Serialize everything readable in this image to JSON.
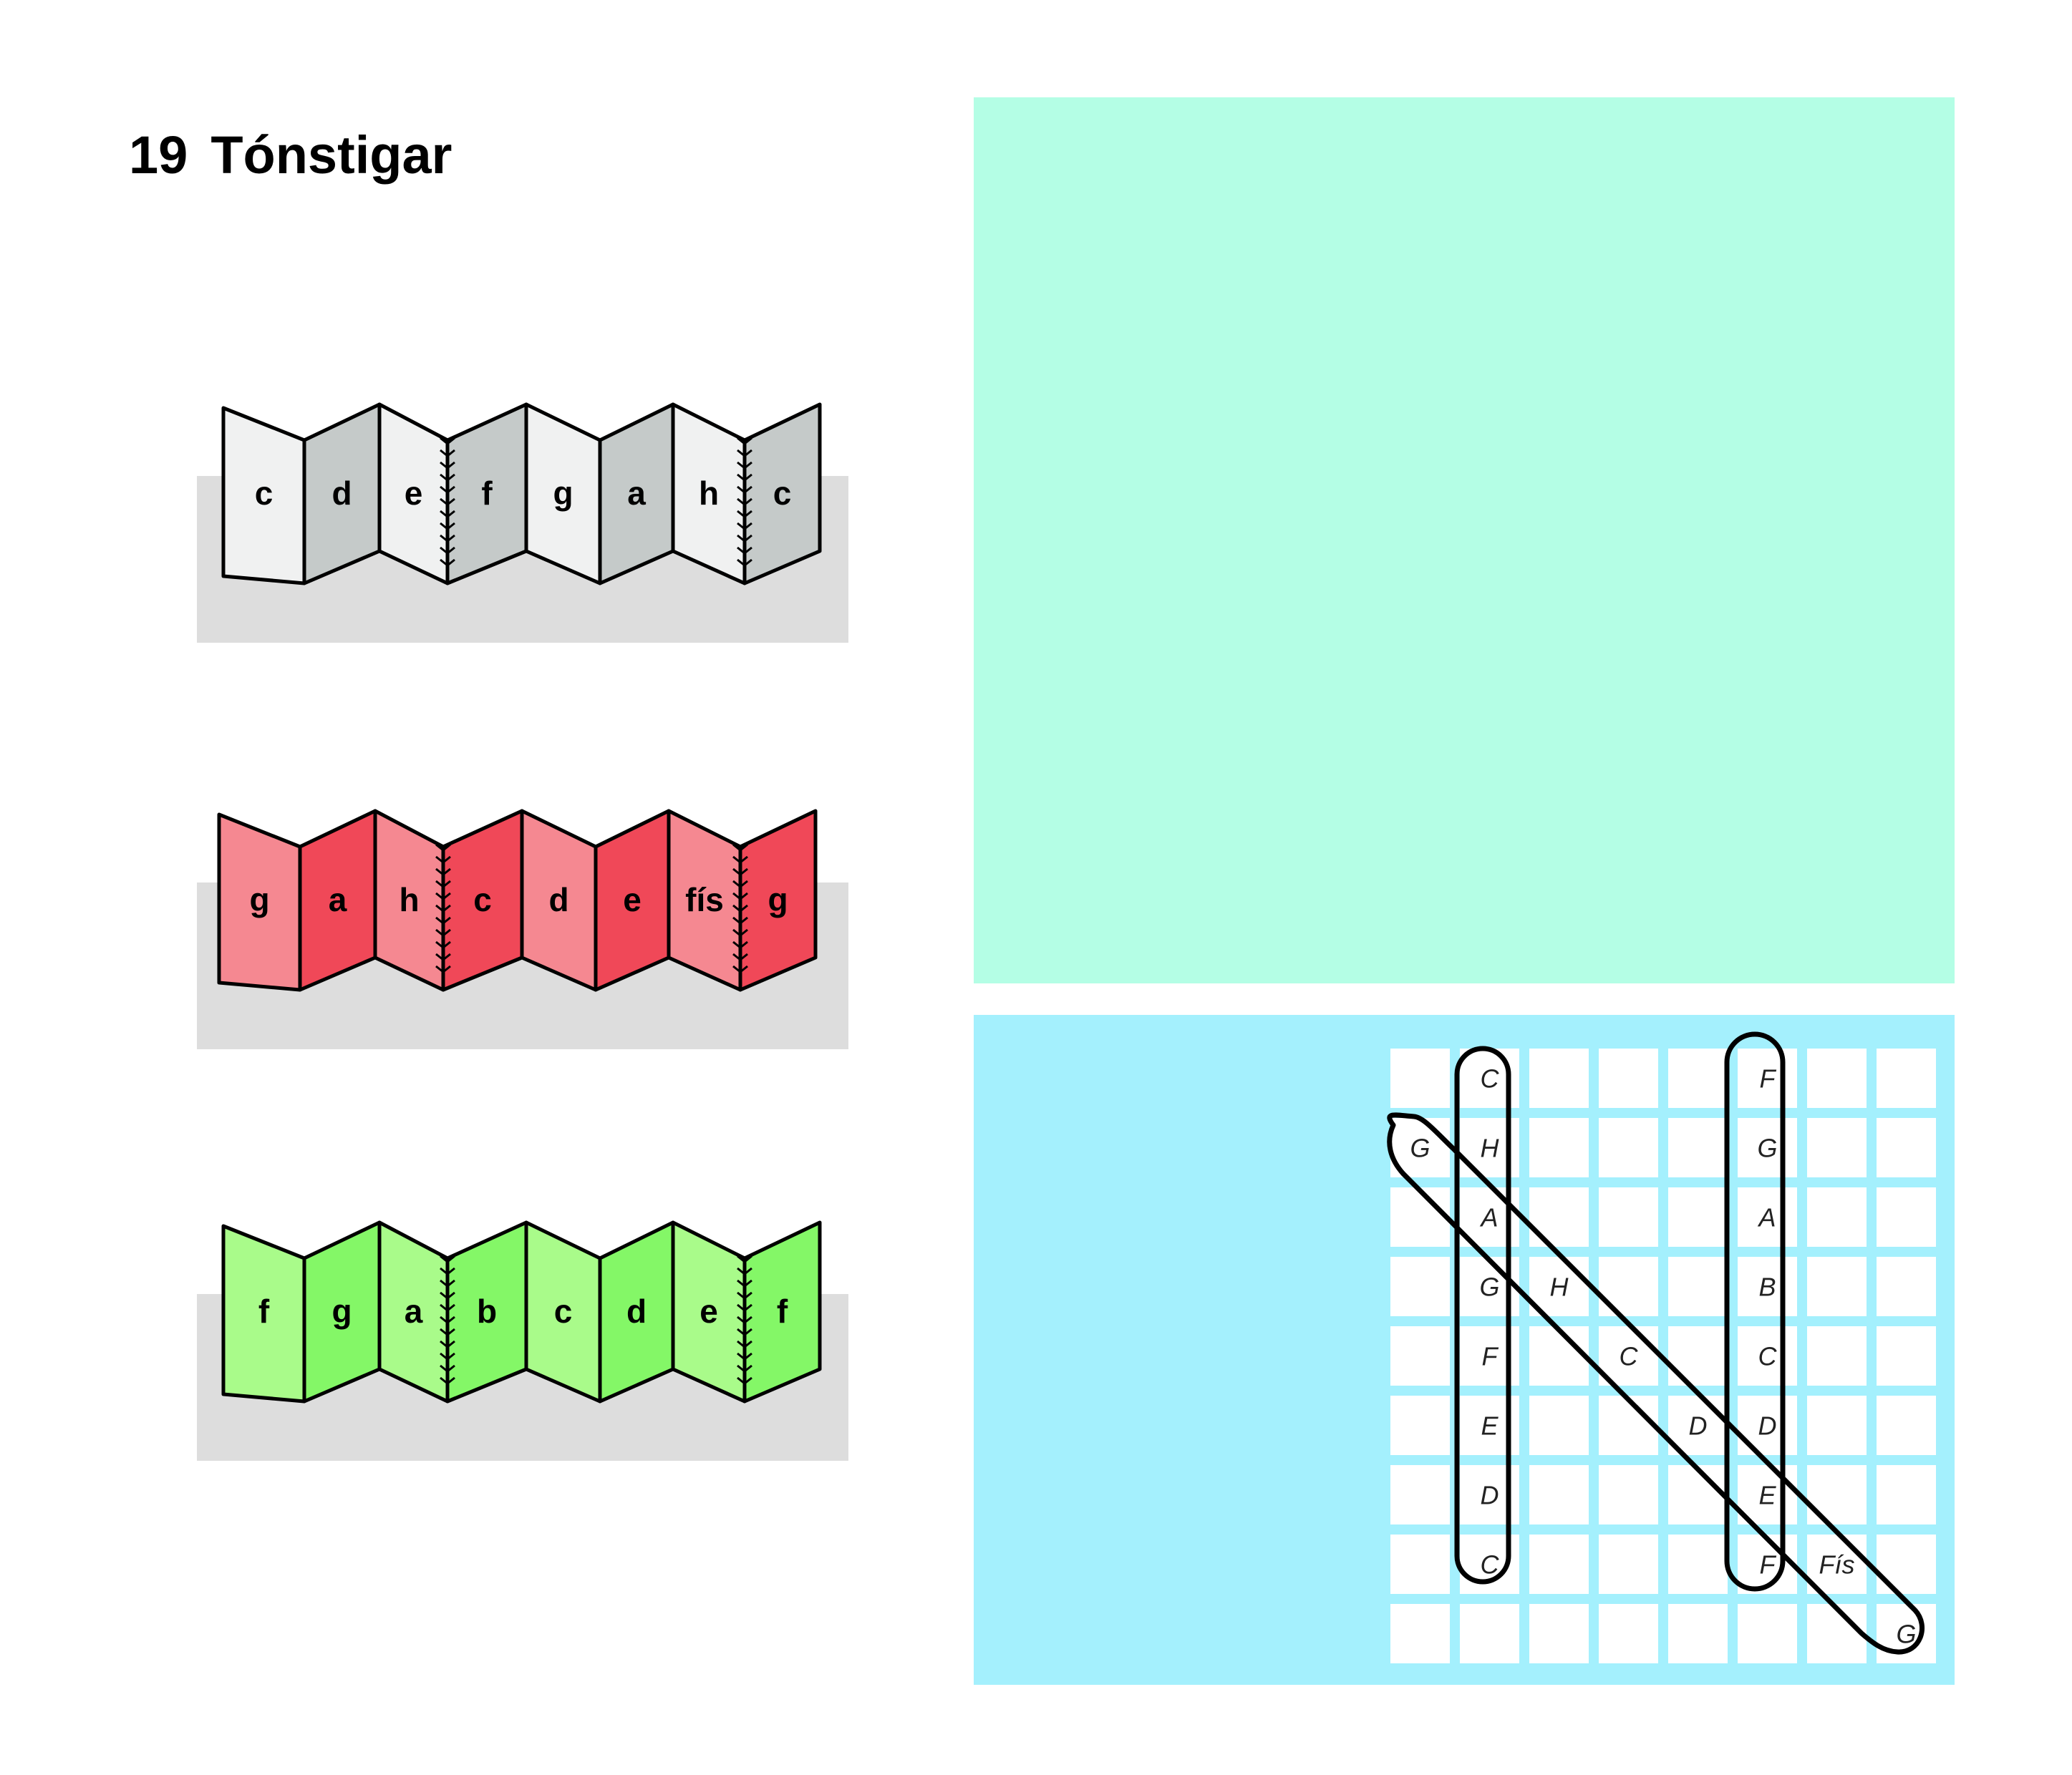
{
  "title": {
    "number": "19",
    "text": "Tónstigar"
  },
  "colors": {
    "grey_light": "#f0f1f1",
    "grey_dark": "#c5cac9",
    "red_light": "#f58891",
    "red_dark": "#f04858",
    "green_light": "#a9fb8a",
    "green_dark": "#84f767",
    "shelf": "#dddddd",
    "panel_top": "#b4fee5",
    "panel_bottom": "#a4f0fd"
  },
  "scales": [
    {
      "name": "grey",
      "notes": [
        "c",
        "d",
        "e",
        "f",
        "g",
        "a",
        "h",
        "c"
      ]
    },
    {
      "name": "red",
      "notes": [
        "g",
        "a",
        "h",
        "c",
        "d",
        "e",
        "fís",
        "g"
      ]
    },
    {
      "name": "green",
      "notes": [
        "f",
        "g",
        "a",
        "b",
        "c",
        "d",
        "e",
        "f"
      ]
    }
  ],
  "grid": {
    "columns": 8,
    "rows": 9,
    "cells": [
      {
        "row": 0,
        "col": 1,
        "text": "C"
      },
      {
        "row": 1,
        "col": 1,
        "text": "H"
      },
      {
        "row": 2,
        "col": 1,
        "text": "A"
      },
      {
        "row": 3,
        "col": 1,
        "text": "G"
      },
      {
        "row": 4,
        "col": 1,
        "text": "F"
      },
      {
        "row": 5,
        "col": 1,
        "text": "E"
      },
      {
        "row": 6,
        "col": 1,
        "text": "D"
      },
      {
        "row": 7,
        "col": 1,
        "text": "C"
      },
      {
        "row": 0,
        "col": 5,
        "text": "F"
      },
      {
        "row": 1,
        "col": 5,
        "text": "G"
      },
      {
        "row": 2,
        "col": 5,
        "text": "A"
      },
      {
        "row": 3,
        "col": 5,
        "text": "B"
      },
      {
        "row": 4,
        "col": 5,
        "text": "C"
      },
      {
        "row": 5,
        "col": 5,
        "text": "D"
      },
      {
        "row": 6,
        "col": 5,
        "text": "E"
      },
      {
        "row": 7,
        "col": 5,
        "text": "F"
      },
      {
        "row": 1,
        "col": 0,
        "text": "G"
      },
      {
        "row": 3,
        "col": 2,
        "text": "H"
      },
      {
        "row": 4,
        "col": 3,
        "text": "C"
      },
      {
        "row": 5,
        "col": 4,
        "text": "D"
      },
      {
        "row": 7,
        "col": 6,
        "text": "Fís"
      },
      {
        "row": 8,
        "col": 7,
        "text": "G"
      }
    ]
  }
}
